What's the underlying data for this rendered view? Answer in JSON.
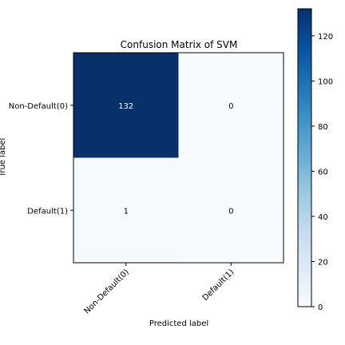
{
  "chart_data": {
    "type": "heatmap",
    "title": "Confusion Matrix of SVM",
    "xlabel": "Predicted label",
    "ylabel": "True label",
    "x_categories": [
      "Non-Default(0)",
      "Default(1)"
    ],
    "y_categories": [
      "Non-Default(0)",
      "Default(1)"
    ],
    "matrix": [
      [
        132,
        0
      ],
      [
        1,
        0
      ]
    ],
    "colormap": "Blues",
    "color_low": "#f7fbff",
    "color_high": "#08306b",
    "text_color_dark_cell": "#ffffff",
    "text_color_light_cell": "#000000",
    "colorbar": {
      "range": [
        0,
        132
      ],
      "ticks": [
        0,
        20,
        40,
        60,
        80,
        100,
        120
      ],
      "tick_labels": [
        "0",
        "20",
        "40",
        "60",
        "80",
        "100",
        "120"
      ]
    }
  }
}
